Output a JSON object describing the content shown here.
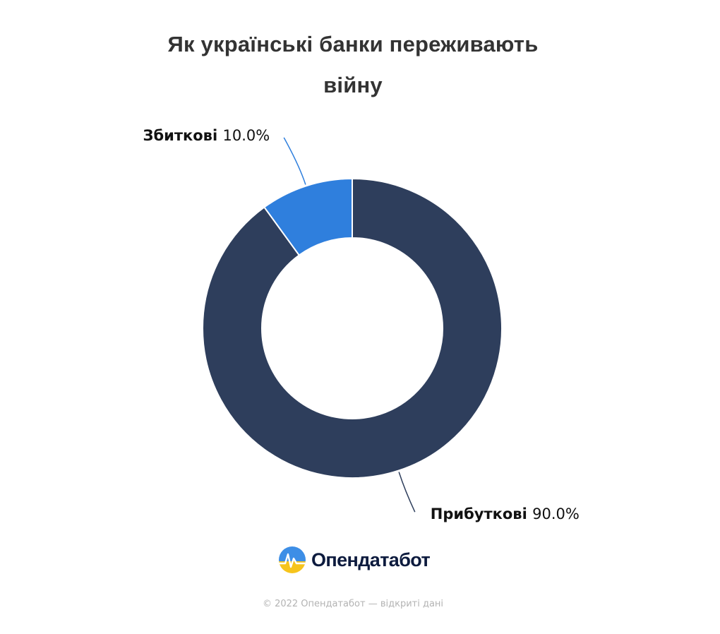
{
  "chart_data": {
    "type": "pie",
    "subtype": "donut",
    "title_lines": [
      "Як українські банки переживають",
      "війну"
    ],
    "slices": [
      {
        "label": "Прибуткові",
        "value": 90.0,
        "value_label": "90.0%",
        "color": "#2e3e5c"
      },
      {
        "label": "Збиткові",
        "value": 10.0,
        "value_label": "10.0%",
        "color": "#2f7fdd"
      }
    ]
  },
  "branding": {
    "logo_icon": "opendatabot-logo-icon",
    "logo_text": "Опендатабот",
    "logo_colors": {
      "top": "#3d8ee6",
      "bottom": "#f6c41c"
    }
  },
  "footer": {
    "copyright": "© 2022 Опендатабот — відкриті дані"
  }
}
